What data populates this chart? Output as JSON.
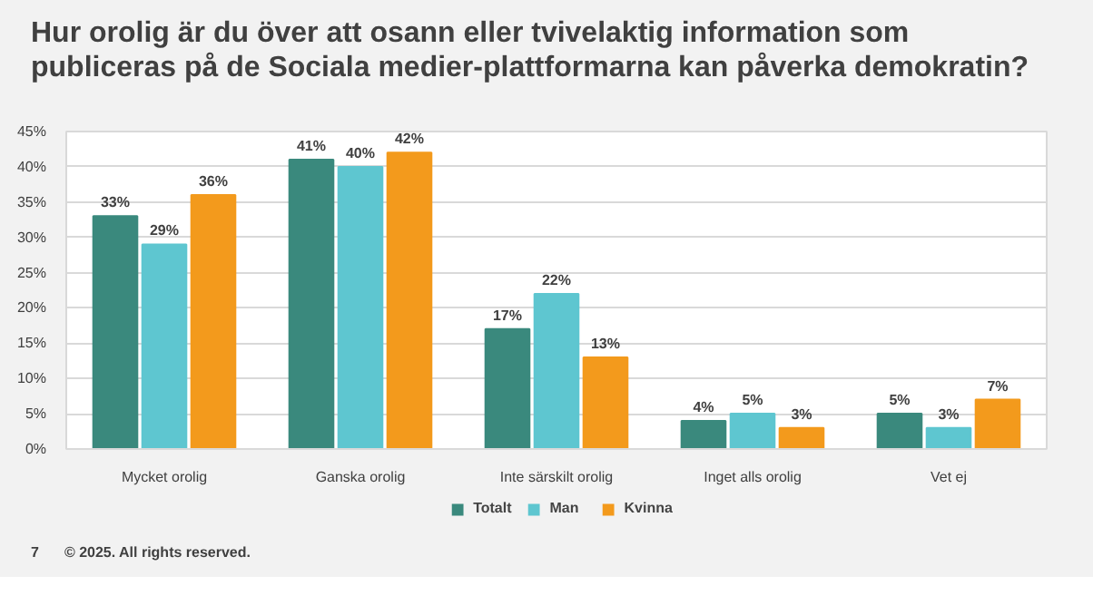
{
  "chart_data": {
    "type": "bar",
    "title": "Hur orolig är du över att osann eller tvivelaktig information som publiceras på de Sociala medier-plattformarna kan påverka demokratin?",
    "categories": [
      "Mycket orolig",
      "Ganska orolig",
      "Inte särskilt orolig",
      "Inget alls orolig",
      "Vet ej"
    ],
    "series": [
      {
        "name": "Totalt",
        "color": "#3a897d",
        "values": [
          33,
          41,
          17,
          4,
          5
        ],
        "value_labels": [
          "33%",
          "41%",
          "17%",
          "4%",
          "5%"
        ]
      },
      {
        "name": "Man",
        "color": "#5ec6d0",
        "values": [
          29,
          40,
          22,
          5,
          3
        ],
        "value_labels": [
          "29%",
          "40%",
          "22%",
          "5%",
          "3%"
        ]
      },
      {
        "name": "Kvinna",
        "color": "#f39a1c",
        "values": [
          36,
          42,
          13,
          3,
          7
        ],
        "value_labels": [
          "36%",
          "42%",
          "13%",
          "3%",
          "7%"
        ]
      }
    ],
    "ylim": [
      0,
      45
    ],
    "yticks": [
      {
        "value": 0,
        "label": "0%"
      },
      {
        "value": 5,
        "label": "5%"
      },
      {
        "value": 10,
        "label": "10%"
      },
      {
        "value": 15,
        "label": "15%"
      },
      {
        "value": 20,
        "label": "20%"
      },
      {
        "value": 25,
        "label": "25%"
      },
      {
        "value": 30,
        "label": "30%"
      },
      {
        "value": 35,
        "label": "35%"
      },
      {
        "value": 40,
        "label": "40%"
      },
      {
        "value": 45,
        "label": "45%"
      }
    ],
    "grid": "y",
    "legend": "bottom",
    "annotations": [
      "7",
      "© 2025. All rights reserved."
    ]
  }
}
